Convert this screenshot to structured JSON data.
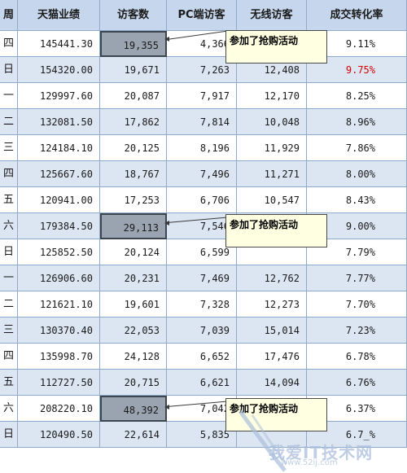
{
  "headers": [
    "周",
    "天猫业绩",
    "访客数",
    "PC端访客",
    "无线访客",
    "成交转化率"
  ],
  "rows": [
    {
      "day": "四",
      "sales": "145441.30",
      "visitors": "19,355",
      "pc": "4,366",
      "mobile": "",
      "conv": "9.11%"
    },
    {
      "day": "日",
      "sales": "154320.00",
      "visitors": "19,671",
      "pc": "7,263",
      "mobile": "12,408",
      "conv": "9.75%"
    },
    {
      "day": "一",
      "sales": "129997.60",
      "visitors": "20,087",
      "pc": "7,917",
      "mobile": "12,170",
      "conv": "8.25%"
    },
    {
      "day": "二",
      "sales": "132081.50",
      "visitors": "17,862",
      "pc": "7,814",
      "mobile": "10,048",
      "conv": "8.96%"
    },
    {
      "day": "三",
      "sales": "124184.10",
      "visitors": "20,125",
      "pc": "8,196",
      "mobile": "11,929",
      "conv": "7.86%"
    },
    {
      "day": "四",
      "sales": "125667.60",
      "visitors": "18,767",
      "pc": "7,496",
      "mobile": "11,271",
      "conv": "8.00%"
    },
    {
      "day": "五",
      "sales": "120941.00",
      "visitors": "17,253",
      "pc": "6,706",
      "mobile": "10,547",
      "conv": "8.43%"
    },
    {
      "day": "六",
      "sales": "179384.50",
      "visitors": "29,113",
      "pc": "7,546",
      "mobile": "",
      "conv": "9.00%"
    },
    {
      "day": "日",
      "sales": "125852.50",
      "visitors": "20,124",
      "pc": "6,599",
      "mobile": "",
      "conv": "7.79%"
    },
    {
      "day": "一",
      "sales": "126906.60",
      "visitors": "20,231",
      "pc": "7,469",
      "mobile": "12,762",
      "conv": "7.77%"
    },
    {
      "day": "二",
      "sales": "121621.10",
      "visitors": "19,601",
      "pc": "7,328",
      "mobile": "12,273",
      "conv": "7.70%"
    },
    {
      "day": "三",
      "sales": "130370.40",
      "visitors": "22,053",
      "pc": "7,039",
      "mobile": "15,014",
      "conv": "7.23%"
    },
    {
      "day": "四",
      "sales": "135998.70",
      "visitors": "24,128",
      "pc": "6,652",
      "mobile": "17,476",
      "conv": "6.78%"
    },
    {
      "day": "五",
      "sales": "112727.50",
      "visitors": "20,715",
      "pc": "6,621",
      "mobile": "14,094",
      "conv": "6.76%"
    },
    {
      "day": "六",
      "sales": "208220.10",
      "visitors": "48,392",
      "pc": "7,042",
      "mobile": "",
      "conv": "6.37%"
    },
    {
      "day": "日",
      "sales": "120490.50",
      "visitors": "22,614",
      "pc": "5,835",
      "mobile": "",
      "conv": "6.7_%"
    }
  ],
  "highlighted_rows": [
    0,
    7,
    14
  ],
  "red_conv_rows": [
    1
  ],
  "callouts": [
    "参加了抢购活动",
    "参加了抢购活动",
    "参加了抢购活动"
  ],
  "watermark": {
    "text": "我爱IT技术网",
    "sub": "www.52ij.com"
  },
  "colors": {
    "header_bg": "#c6d6ec",
    "alt_row_bg": "#dce6f2",
    "highlight_cell": "#9aa4b0",
    "callout_bg": "#ffffe1",
    "red_text": "#d40000"
  }
}
